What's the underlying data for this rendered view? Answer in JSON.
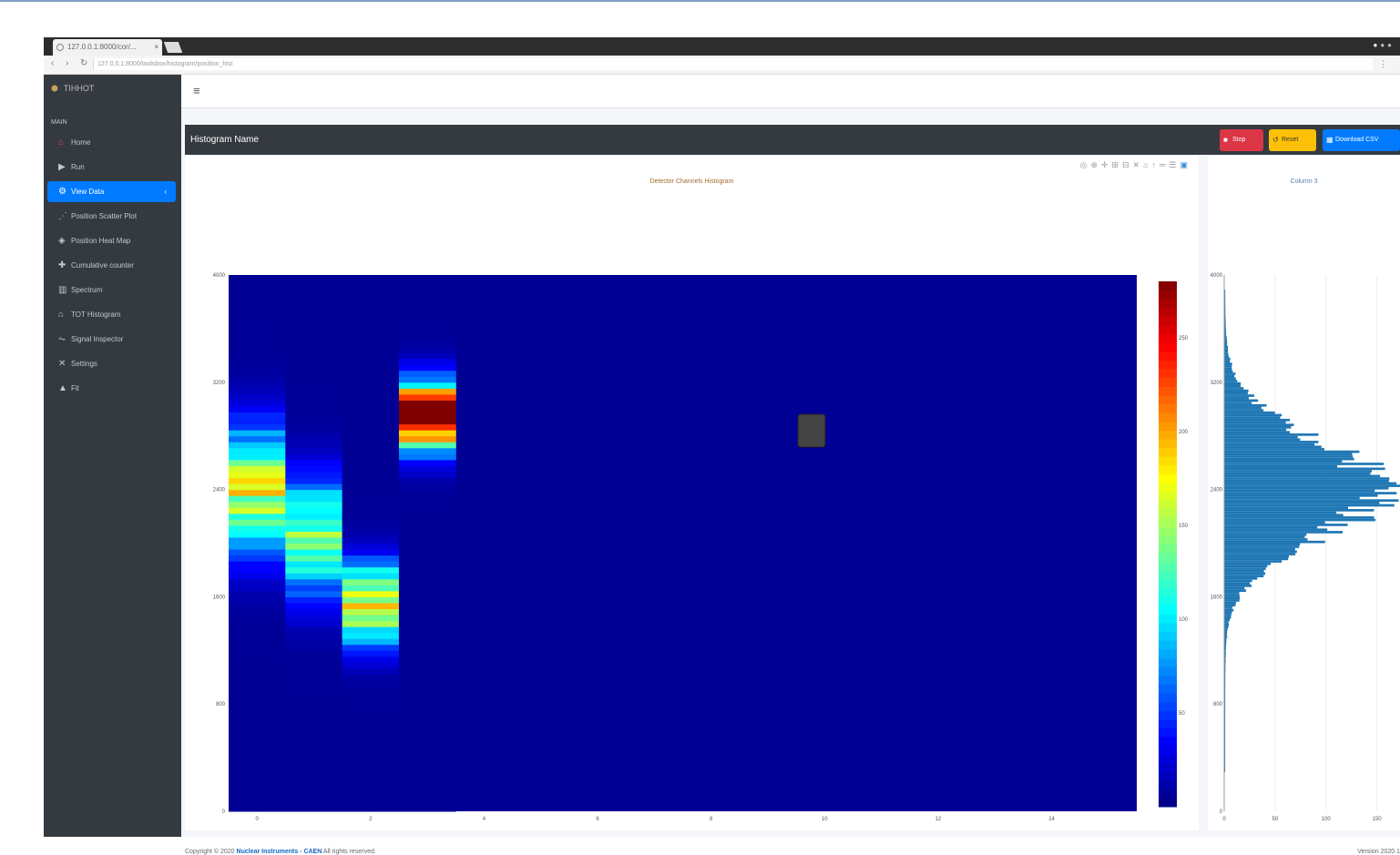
{
  "browser": {
    "tab_title": "127.0.0.1:8000/cor/...",
    "url": "127.0.0.1:8000/toolsbox/histogram/position_hist"
  },
  "app": {
    "brand": "TIHHOT"
  },
  "sidebar": {
    "section": "MAIN",
    "items": [
      {
        "label": "Home",
        "icon": "home-icon",
        "glyph": "⌂",
        "color": "#e83e8c"
      },
      {
        "label": "Run",
        "icon": "play-icon",
        "glyph": "▶"
      },
      {
        "label": "View Data",
        "icon": "sitemap-icon",
        "glyph": "⚙",
        "active": true
      },
      {
        "label": "Position Scatter Plot",
        "icon": "scatter-icon",
        "glyph": "⋰"
      },
      {
        "label": "Position Heat Map",
        "icon": "heatmap-icon",
        "glyph": "◈"
      },
      {
        "label": "Cumulative counter",
        "icon": "counter-icon",
        "glyph": "✚"
      },
      {
        "label": "Spectrum",
        "icon": "spectrum-icon",
        "glyph": "▥"
      },
      {
        "label": "TOT Histogram",
        "icon": "histogram-icon",
        "glyph": "⌂"
      },
      {
        "label": "Signal Inspector",
        "icon": "signal-icon",
        "glyph": "⏦"
      },
      {
        "label": "Settings",
        "icon": "settings-icon",
        "glyph": "✕"
      },
      {
        "label": "Fit",
        "icon": "fit-icon",
        "glyph": "▲"
      }
    ]
  },
  "card": {
    "title": "Histogram Name",
    "stop_label": "Stop",
    "reset_label": "Reset",
    "download_label": "Download CSV"
  },
  "colors": {
    "stop": "#dc3545",
    "reset": "#ffc107",
    "download": "#007bff",
    "sidebar": "#343a40"
  },
  "footer": {
    "copyright_prefix": "Copyright © 2020",
    "company": "Nuclear Instruments - CAEN",
    "rights": "All rights reserved.",
    "version": "Version 2020.1"
  },
  "chart_data": [
    {
      "type": "heatmap",
      "title": "Detector Channels Histogram",
      "x_range": [
        -0.5,
        15.5
      ],
      "y_range": [
        0,
        4000
      ],
      "x_ticks": [
        0,
        2,
        4,
        6,
        8,
        10,
        12,
        14
      ],
      "y_ticks": [
        0,
        800,
        1600,
        2400,
        3200,
        4000
      ],
      "colorbar_ticks": [
        50,
        100,
        150,
        200,
        250
      ],
      "columns": [
        {
          "x": 0,
          "center": 2400,
          "width": 700,
          "peak": 160
        },
        {
          "x": 1,
          "center": 2050,
          "width": 650,
          "peak": 140
        },
        {
          "x": 2,
          "center": 1550,
          "width": 450,
          "peak": 175
        },
        {
          "x": 3,
          "center": 2950,
          "width": 380,
          "peak": 280
        }
      ],
      "colorscale": "jet"
    },
    {
      "type": "bar",
      "orientation": "horizontal",
      "title": "Column 3",
      "y_range": [
        0,
        4000
      ],
      "x_ticks": [
        0,
        50,
        100,
        150
      ],
      "center": 2400,
      "width": 550,
      "peak": 150
    }
  ]
}
